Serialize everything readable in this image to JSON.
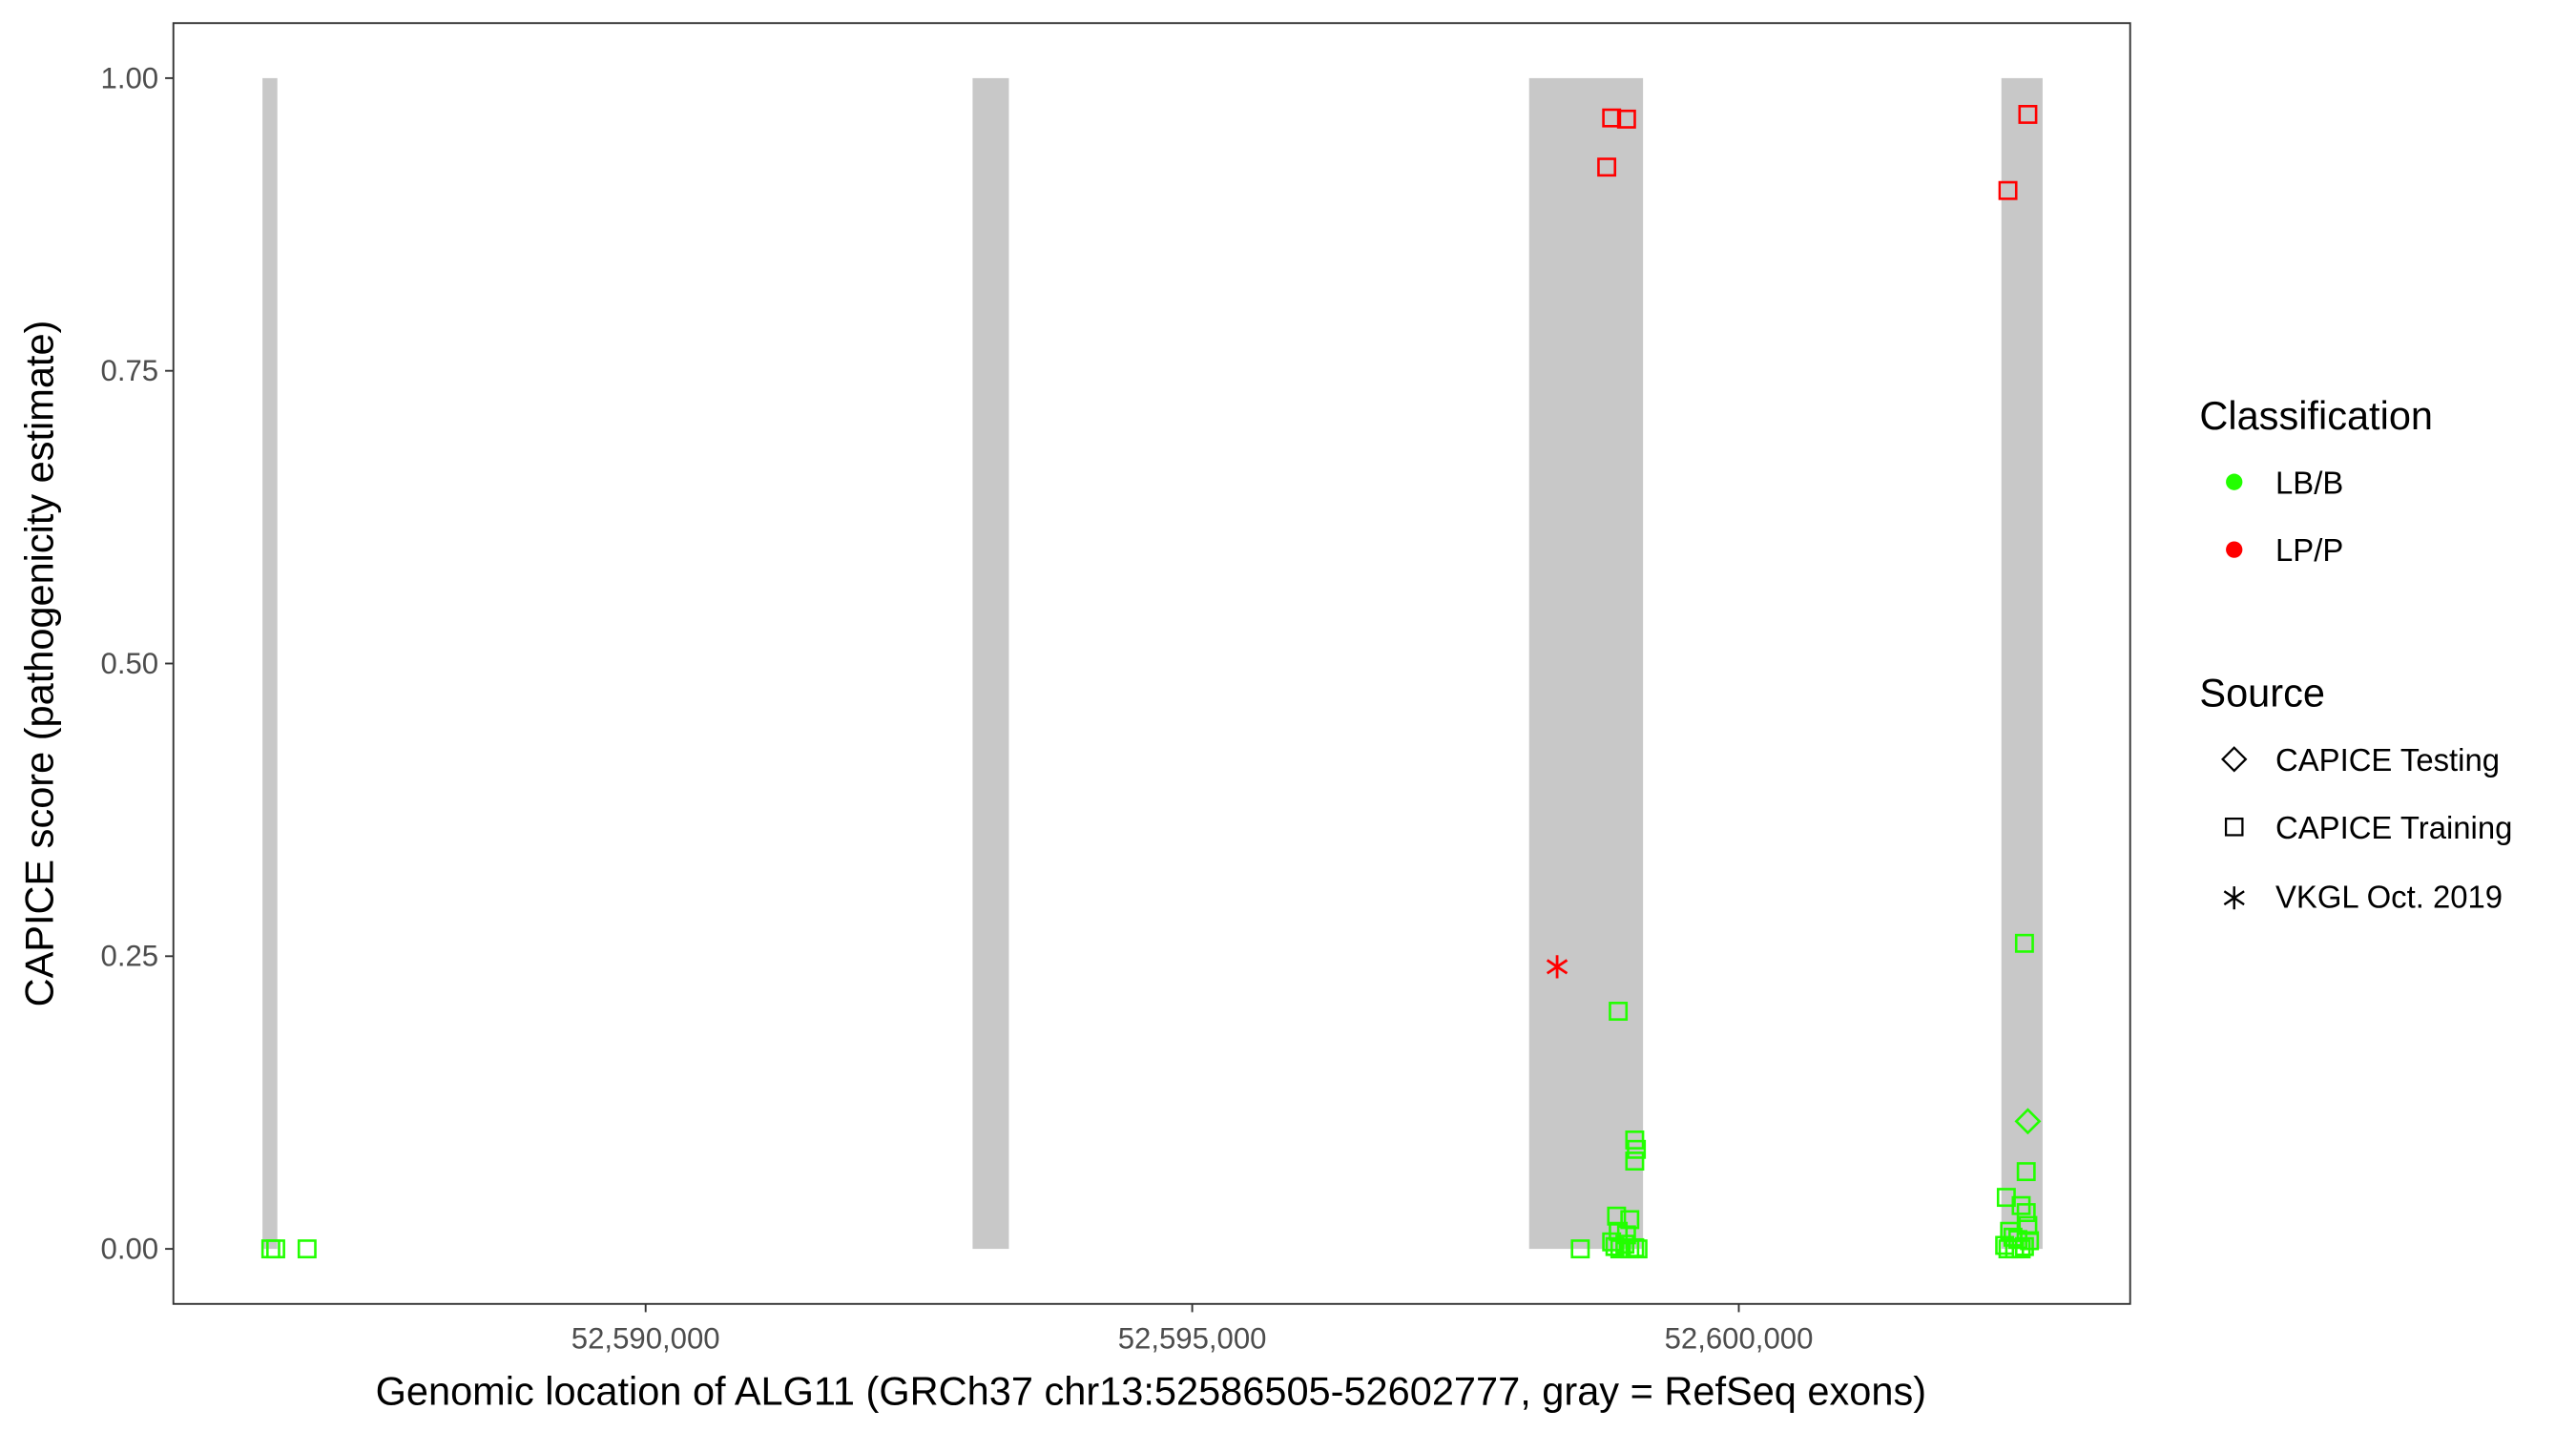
{
  "chart_data": {
    "type": "scatter",
    "title": "",
    "xlabel": "Genomic location of ALG11 (GRCh37 chr13:52586505-52602777, gray = RefSeq exons)",
    "ylabel": "CAPICE score (pathogenicity estimate)",
    "xlim": [
      52585680,
      52603580
    ],
    "ylim": [
      -0.047,
      1.047
    ],
    "x_ticks": [
      52590000,
      52595000,
      52600000
    ],
    "x_tick_labels": [
      "52,590,000",
      "52,595,000",
      "52,600,000"
    ],
    "y_ticks": [
      0,
      0.25,
      0.5,
      0.75,
      1.0
    ],
    "y_tick_labels": [
      "0.00",
      "0.25",
      "0.50",
      "0.75",
      "1.00"
    ],
    "grid": false,
    "exons": [
      {
        "start": 52586495,
        "end": 52586631
      },
      {
        "start": 52592991,
        "end": 52593323
      },
      {
        "start": 52598082,
        "end": 52599124
      },
      {
        "start": 52602402,
        "end": 52602779
      }
    ],
    "exon_color": "#c8c8c8",
    "legend": {
      "placement": "right",
      "classification_title": "Classification",
      "classification": [
        {
          "label": "LB/B",
          "color": "#22ff00"
        },
        {
          "label": "LP/P",
          "color": "#ff0000"
        }
      ],
      "source_title": "Source",
      "source": [
        {
          "label": "CAPICE Testing",
          "shape": "diamond"
        },
        {
          "label": "CAPICE Training",
          "shape": "square"
        },
        {
          "label": "VKGL Oct. 2019",
          "shape": "asterisk"
        }
      ]
    },
    "points": [
      {
        "x": 52598837,
        "y": 0.966,
        "class": "LP/P",
        "source": "CAPICE Training"
      },
      {
        "x": 52598973,
        "y": 0.965,
        "class": "LP/P",
        "source": "CAPICE Training"
      },
      {
        "x": 52598792,
        "y": 0.924,
        "class": "LP/P",
        "source": "CAPICE Training"
      },
      {
        "x": 52602462,
        "y": 0.904,
        "class": "LP/P",
        "source": "CAPICE Training"
      },
      {
        "x": 52602644,
        "y": 0.969,
        "class": "LP/P",
        "source": "CAPICE Training"
      },
      {
        "x": 52598338,
        "y": 0.241,
        "class": "LP/P",
        "source": "VKGL Oct. 2019"
      },
      {
        "x": 52586571,
        "y": 0.0,
        "class": "LB/B",
        "source": "CAPICE Training"
      },
      {
        "x": 52586616,
        "y": 0.0,
        "class": "LB/B",
        "source": "CAPICE Training"
      },
      {
        "x": 52586903,
        "y": 0.0,
        "class": "LB/B",
        "source": "CAPICE Training"
      },
      {
        "x": 52598550,
        "y": 0.0,
        "class": "LB/B",
        "source": "CAPICE Training"
      },
      {
        "x": 52598897,
        "y": 0.203,
        "class": "LB/B",
        "source": "CAPICE Training"
      },
      {
        "x": 52599048,
        "y": 0.093,
        "class": "LB/B",
        "source": "CAPICE Training"
      },
      {
        "x": 52599063,
        "y": 0.085,
        "class": "LB/B",
        "source": "CAPICE Training"
      },
      {
        "x": 52599048,
        "y": 0.075,
        "class": "LB/B",
        "source": "CAPICE Training"
      },
      {
        "x": 52598882,
        "y": 0.028,
        "class": "LB/B",
        "source": "CAPICE Training"
      },
      {
        "x": 52599003,
        "y": 0.025,
        "class": "LB/B",
        "source": "CAPICE Training"
      },
      {
        "x": 52598897,
        "y": 0.015,
        "class": "LB/B",
        "source": "CAPICE Training"
      },
      {
        "x": 52598973,
        "y": 0.012,
        "class": "LB/B",
        "source": "CAPICE Training"
      },
      {
        "x": 52598837,
        "y": 0.006,
        "class": "LB/B",
        "source": "CAPICE Training"
      },
      {
        "x": 52598867,
        "y": 0.002,
        "class": "LB/B",
        "source": "CAPICE Training"
      },
      {
        "x": 52598912,
        "y": 0.0,
        "class": "LB/B",
        "source": "CAPICE Training"
      },
      {
        "x": 52598958,
        "y": 0.004,
        "class": "LB/B",
        "source": "CAPICE Training"
      },
      {
        "x": 52599003,
        "y": 0.0,
        "class": "LB/B",
        "source": "CAPICE Training"
      },
      {
        "x": 52599048,
        "y": 0.001,
        "class": "LB/B",
        "source": "CAPICE Training"
      },
      {
        "x": 52599078,
        "y": 0.0,
        "class": "LB/B",
        "source": "CAPICE Training"
      },
      {
        "x": 52602613,
        "y": 0.261,
        "class": "LB/B",
        "source": "CAPICE Training"
      },
      {
        "x": 52602644,
        "y": 0.109,
        "class": "LB/B",
        "source": "CAPICE Testing"
      },
      {
        "x": 52602629,
        "y": 0.066,
        "class": "LB/B",
        "source": "CAPICE Training"
      },
      {
        "x": 52602447,
        "y": 0.044,
        "class": "LB/B",
        "source": "CAPICE Training"
      },
      {
        "x": 52602583,
        "y": 0.037,
        "class": "LB/B",
        "source": "CAPICE Training"
      },
      {
        "x": 52602629,
        "y": 0.031,
        "class": "LB/B",
        "source": "CAPICE Training"
      },
      {
        "x": 52602644,
        "y": 0.02,
        "class": "LB/B",
        "source": "CAPICE Training"
      },
      {
        "x": 52602477,
        "y": 0.015,
        "class": "LB/B",
        "source": "CAPICE Training"
      },
      {
        "x": 52602508,
        "y": 0.01,
        "class": "LB/B",
        "source": "CAPICE Training"
      },
      {
        "x": 52602553,
        "y": 0.008,
        "class": "LB/B",
        "source": "CAPICE Training"
      },
      {
        "x": 52602659,
        "y": 0.007,
        "class": "LB/B",
        "source": "CAPICE Training"
      },
      {
        "x": 52602432,
        "y": 0.003,
        "class": "LB/B",
        "source": "CAPICE Training"
      },
      {
        "x": 52602462,
        "y": 0.0,
        "class": "LB/B",
        "source": "CAPICE Training"
      },
      {
        "x": 52602523,
        "y": 0.0,
        "class": "LB/B",
        "source": "CAPICE Training"
      },
      {
        "x": 52602583,
        "y": 0.0,
        "class": "LB/B",
        "source": "CAPICE Training"
      },
      {
        "x": 52602613,
        "y": 0.002,
        "class": "LB/B",
        "source": "CAPICE Training"
      }
    ]
  }
}
